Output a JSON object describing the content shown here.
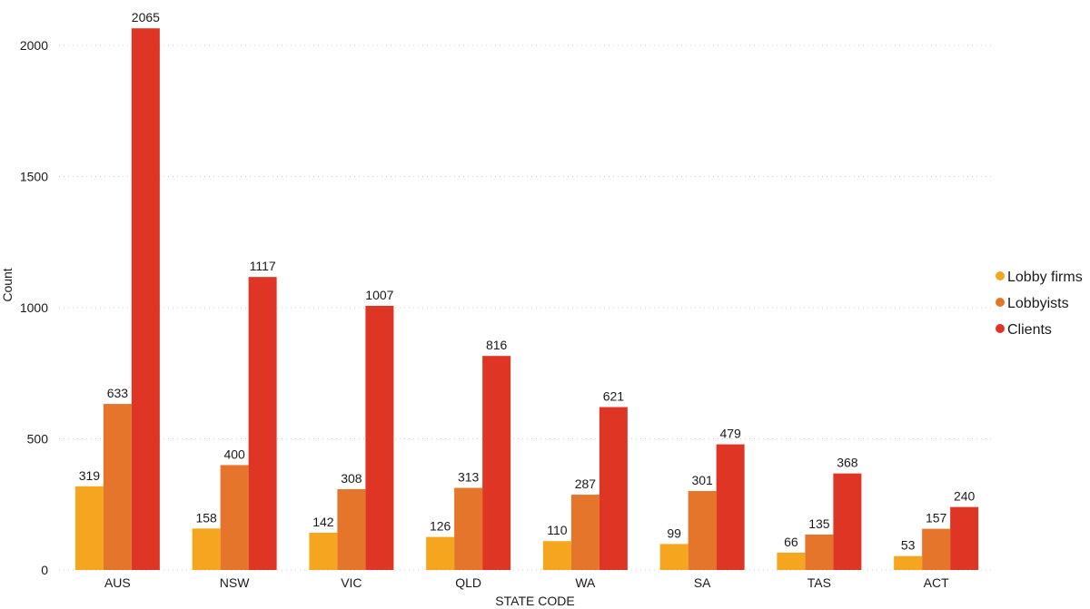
{
  "chart_data": {
    "type": "bar",
    "title": "",
    "xlabel": "STATE CODE",
    "ylabel": "Count",
    "ylim": [
      0,
      2000
    ],
    "yticks": [
      0,
      500,
      1000,
      1500,
      2000
    ],
    "grid": true,
    "legend_position": "right",
    "categories": [
      "AUS",
      "NSW",
      "VIC",
      "QLD",
      "WA",
      "SA",
      "TAS",
      "ACT"
    ],
    "series": [
      {
        "name": "Lobby firms",
        "color": "#F6A61E",
        "values": [
          319,
          158,
          142,
          126,
          110,
          99,
          66,
          53
        ]
      },
      {
        "name": "Lobbyists",
        "color": "#E4752B",
        "values": [
          633,
          400,
          308,
          313,
          287,
          301,
          135,
          157
        ]
      },
      {
        "name": "Clients",
        "color": "#DF3524",
        "values": [
          2065,
          1117,
          1007,
          816,
          621,
          479,
          368,
          240
        ]
      }
    ]
  }
}
